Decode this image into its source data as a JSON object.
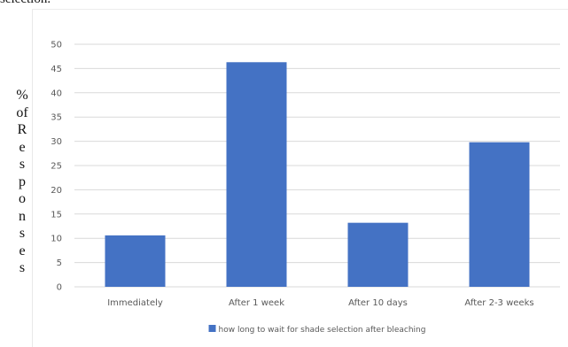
{
  "page": {
    "top_caption": "selection.",
    "ylabel_chars": [
      "%",
      "of",
      "R",
      "e",
      "s",
      "p",
      "o",
      "n",
      "s",
      "e",
      "s"
    ]
  },
  "chart_data": {
    "type": "bar",
    "title": "",
    "xlabel": "",
    "ylabel": "% of Responses",
    "categories": [
      "Immediately",
      "After 1 week",
      "After 10 days",
      "After 2-3 weeks"
    ],
    "series": [
      {
        "name": "how long to wait for shade selection after bleaching",
        "values": [
          10.6,
          46.3,
          13.2,
          29.8
        ],
        "color": "#4472C4"
      }
    ],
    "ylim": [
      0,
      50
    ],
    "yticks": [
      0,
      5,
      10,
      15,
      20,
      25,
      30,
      35,
      40,
      45,
      50
    ],
    "grid": true,
    "legend": "bottom",
    "colors": {
      "grid": "#d9d9d9",
      "tick_text": "#595959"
    }
  }
}
